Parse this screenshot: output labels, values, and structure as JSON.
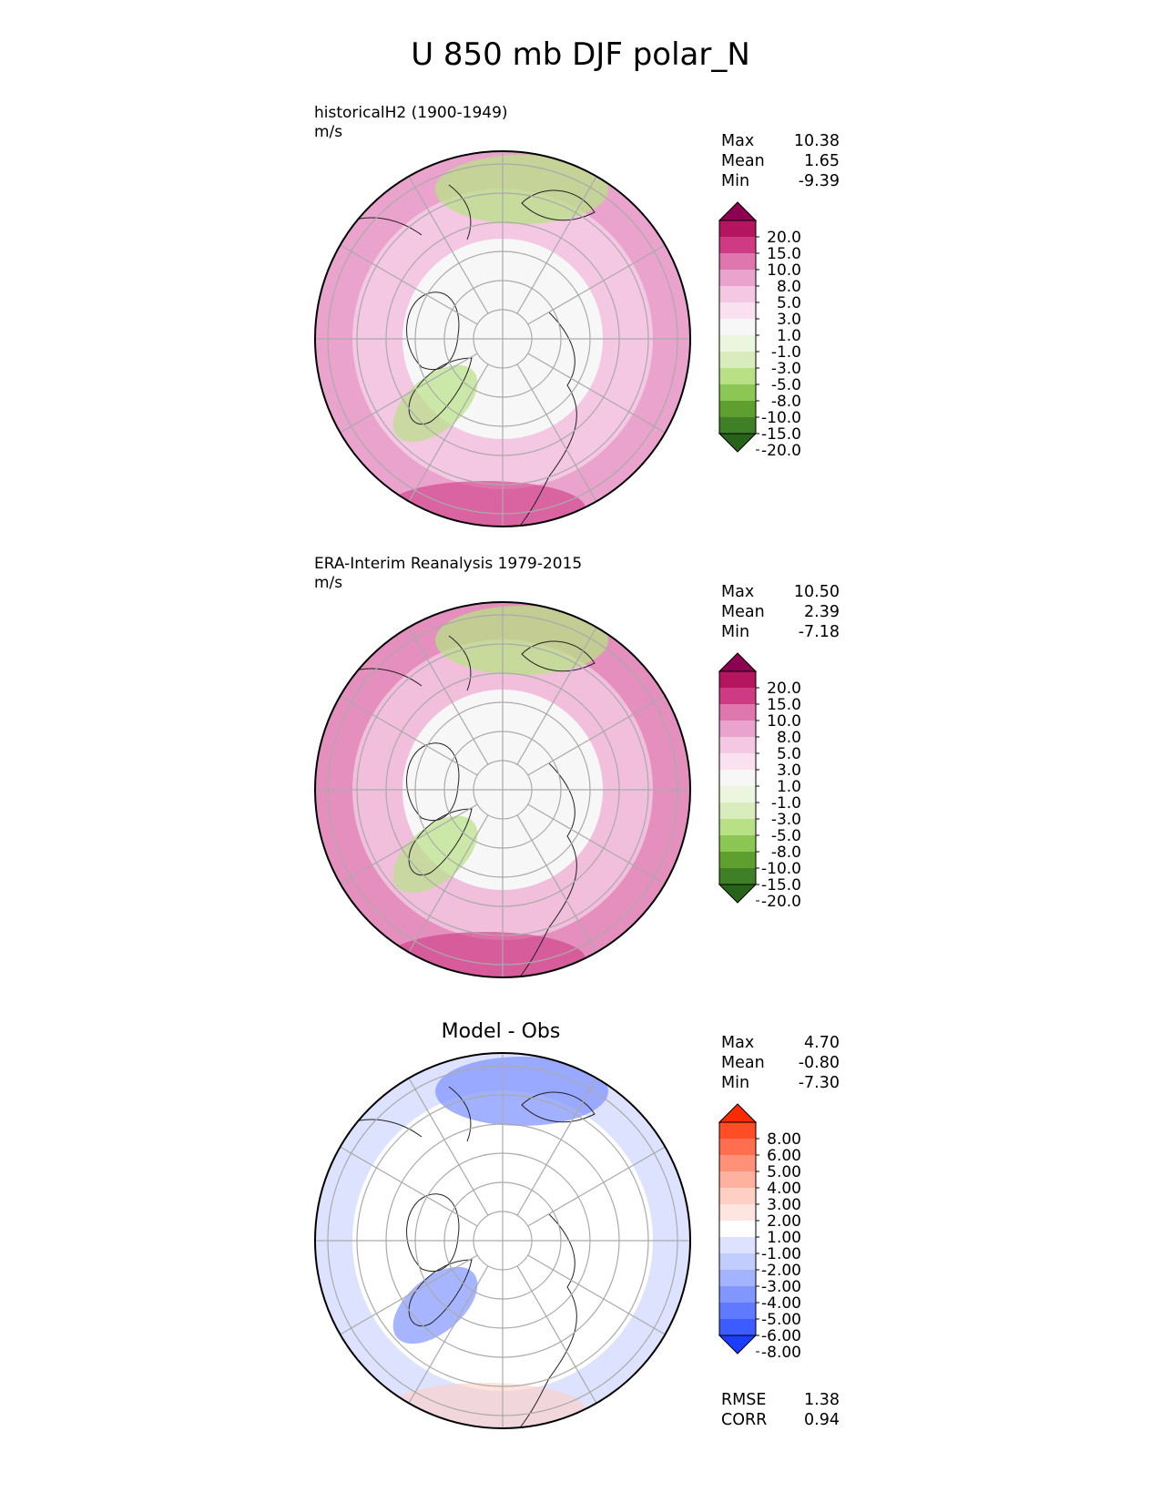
{
  "figure_title": "U 850 mb DJF polar_N",
  "panels": [
    {
      "label_line1": "historicalH2 (1900-1949)",
      "label_line2": "m/s",
      "stats": [
        {
          "name": "Max",
          "value": "10.38"
        },
        {
          "name": "Mean",
          "value": "1.65"
        },
        {
          "name": "Min",
          "value": "-9.39"
        }
      ],
      "colorbar": {
        "labels": [
          "20.0",
          "15.0",
          "10.0",
          "8.0",
          "5.0",
          "3.0",
          "1.0",
          "-1.0",
          "-3.0",
          "-5.0",
          "-8.0",
          "-10.0",
          "-15.0",
          "-20.0"
        ],
        "colors": [
          "#8e0152",
          "#b5155e",
          "#cf3a85",
          "#de77ae",
          "#eaa3cd",
          "#f4c7e3",
          "#f9e1ef",
          "#f7f7f7",
          "#ecf5de",
          "#d8ecbe",
          "#b8e186",
          "#8cc654",
          "#5f9f30",
          "#3f7f26",
          "#276419"
        ]
      },
      "map_zones": {
        "outer": "#eaa3cd",
        "mid": "#f4c7e3",
        "inner": "#f7f7f7",
        "feature_neg": "#b8e186",
        "feature_pos": "#cf3a85"
      }
    },
    {
      "label_line1": "ERA-Interim Reanalysis 1979-2015",
      "label_line2": "m/s",
      "stats": [
        {
          "name": "Max",
          "value": "10.50"
        },
        {
          "name": "Mean",
          "value": "2.39"
        },
        {
          "name": "Min",
          "value": "-7.18"
        }
      ],
      "colorbar": {
        "labels": [
          "20.0",
          "15.0",
          "10.0",
          "8.0",
          "5.0",
          "3.0",
          "1.0",
          "-1.0",
          "-3.0",
          "-5.0",
          "-8.0",
          "-10.0",
          "-15.0",
          "-20.0"
        ],
        "colors": [
          "#8e0152",
          "#b5155e",
          "#cf3a85",
          "#de77ae",
          "#eaa3cd",
          "#f4c7e3",
          "#f9e1ef",
          "#f7f7f7",
          "#ecf5de",
          "#d8ecbe",
          "#b8e186",
          "#8cc654",
          "#5f9f30",
          "#3f7f26",
          "#276419"
        ]
      },
      "map_zones": {
        "outer": "#e48fbd",
        "mid": "#f1bedc",
        "inner": "#f7f7f7",
        "feature_neg": "#b8e186",
        "feature_pos": "#cf3a85"
      }
    },
    {
      "title": "Model - Obs",
      "stats": [
        {
          "name": "Max",
          "value": "4.70"
        },
        {
          "name": "Mean",
          "value": "-0.80"
        },
        {
          "name": "Min",
          "value": "-7.30"
        }
      ],
      "extra_stats": [
        {
          "name": "RMSE",
          "value": "1.38"
        },
        {
          "name": "CORR",
          "value": "0.94"
        }
      ],
      "colorbar": {
        "labels": [
          "8.00",
          "6.00",
          "5.00",
          "4.00",
          "3.00",
          "2.00",
          "1.00",
          "-1.00",
          "-2.00",
          "-3.00",
          "-4.00",
          "-5.00",
          "-6.00",
          "-8.00"
        ],
        "colors": [
          "#ff2a00",
          "#ff4d26",
          "#ff6e4f",
          "#ff9178",
          "#ffb1a0",
          "#ffcfc4",
          "#ffe5df",
          "#ffffff",
          "#dde3ff",
          "#c2cdff",
          "#a3b3ff",
          "#8296ff",
          "#5f79ff",
          "#3d5cff",
          "#1a3dff"
        ]
      },
      "map_zones": {
        "outer": "#dde3ff",
        "mid": "#ffffff",
        "inner": "#ffffff",
        "feature_neg": "#8296ff",
        "feature_pos": "#ffcfc4"
      }
    }
  ]
}
